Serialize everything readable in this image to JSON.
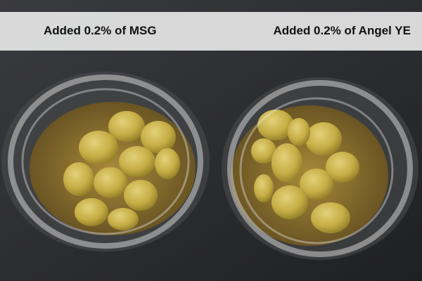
{
  "labels": {
    "left": "Added 0.2% of MSG",
    "right": "Added 0.2% of Angel YE"
  },
  "colors": {
    "background": "#2b2c2f",
    "banner": "#e1e1e1",
    "olive": "#c9b24a",
    "brine": "#b8902e"
  }
}
